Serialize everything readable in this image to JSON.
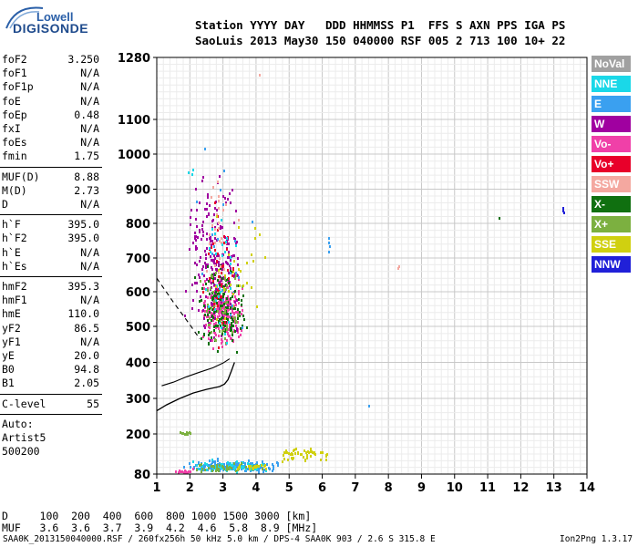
{
  "logo": {
    "top": "Lowell",
    "bottom": "DIGISONDE"
  },
  "header": {
    "line1": "Station YYYY DAY   DDD HHMMSS P1  FFS S AXN PPS IGA PS",
    "line2": "SaoLuis 2013 May30 150 040000 RSF 005 2 713 100 10+ 22"
  },
  "params_group1": [
    {
      "label": "foF2",
      "value": "3.250"
    },
    {
      "label": "foF1",
      "value": "N/A"
    },
    {
      "label": "foF1p",
      "value": "N/A"
    },
    {
      "label": "foE",
      "value": "N/A"
    },
    {
      "label": "foEp",
      "value": "0.48"
    },
    {
      "label": "fxI",
      "value": "N/A"
    },
    {
      "label": "foEs",
      "value": "N/A"
    },
    {
      "label": "fmin",
      "value": "1.75"
    }
  ],
  "params_group2": [
    {
      "label": "MUF(D)",
      "value": "8.88"
    },
    {
      "label": "M(D)",
      "value": "2.73"
    },
    {
      "label": "D",
      "value": "N/A"
    }
  ],
  "params_group3": [
    {
      "label": "h`F",
      "value": "395.0"
    },
    {
      "label": "h`F2",
      "value": "395.0"
    },
    {
      "label": "h`E",
      "value": "N/A"
    },
    {
      "label": "h`Es",
      "value": "N/A"
    }
  ],
  "params_group4": [
    {
      "label": "hmF2",
      "value": "395.3"
    },
    {
      "label": "hmF1",
      "value": "N/A"
    },
    {
      "label": "hmE",
      "value": "110.0"
    },
    {
      "label": "yF2",
      "value": "86.5"
    },
    {
      "label": "yF1",
      "value": "N/A"
    },
    {
      "label": "yE",
      "value": "20.0"
    },
    {
      "label": "B0",
      "value": "94.8"
    },
    {
      "label": "B1",
      "value": "2.05"
    }
  ],
  "clevel": {
    "label": "C-level",
    "value": "55"
  },
  "scaling": {
    "line1": "Auto:",
    "line2": "Artist5",
    "line3": "500200"
  },
  "legend": [
    {
      "name": "NoVal",
      "color": "#a0a0a0"
    },
    {
      "name": "NNE",
      "color": "#1ad8e8"
    },
    {
      "name": "E",
      "color": "#3aa0f0"
    },
    {
      "name": "W",
      "color": "#a000a0"
    },
    {
      "name": "Vo-",
      "color": "#f040a8"
    },
    {
      "name": "Vo+",
      "color": "#e8002a"
    },
    {
      "name": "SSW",
      "color": "#f4a8a0"
    },
    {
      "name": "X-",
      "color": "#107010"
    },
    {
      "name": "X+",
      "color": "#7cb040"
    },
    {
      "name": "SSE",
      "color": "#d0d010"
    },
    {
      "name": "NNW",
      "color": "#2020d8"
    }
  ],
  "muf_table": {
    "d_row": "D     100  200  400  600  800 1000 1500 3000 [km]",
    "muf_row": "MUF   3.6  3.6  3.7  3.9  4.2  4.6  5.8  8.9 [MHz]"
  },
  "footer": {
    "file_info": "SAA0K_2013150040000.RSF / 260fx256h 50 kHz 5.0 km / DPS-4 SAA0K 903 / 2.6 S 315.8 E",
    "version": "Ion2Png 1.3.17"
  },
  "chart_data": {
    "type": "scatter",
    "title": "",
    "xlabel": "",
    "ylabel": "",
    "xlim": [
      1,
      14
    ],
    "ylim": [
      80,
      1280
    ],
    "x_ticks": [
      "1",
      "2",
      "3",
      "4",
      "5",
      "6",
      "7",
      "8",
      "9",
      "10",
      "11",
      "12",
      "13",
      "14"
    ],
    "y_ticks": [
      "80",
      "200",
      "300",
      "400",
      "500",
      "600",
      "700",
      "800",
      "900",
      "1000",
      "1100",
      "1280"
    ],
    "y_tick_values": [
      80,
      200,
      300,
      400,
      500,
      600,
      700,
      800,
      900,
      1000,
      1100,
      1280
    ],
    "grid": true,
    "profile_curve": [
      [
        1.0,
        265
      ],
      [
        1.3,
        282
      ],
      [
        1.7,
        300
      ],
      [
        2.1,
        315
      ],
      [
        2.5,
        325
      ],
      [
        2.9,
        333
      ],
      [
        3.05,
        340
      ],
      [
        3.15,
        352
      ],
      [
        3.25,
        375
      ],
      [
        3.35,
        400
      ]
    ],
    "trace_curve": [
      [
        1.15,
        335
      ],
      [
        1.5,
        345
      ],
      [
        1.9,
        360
      ],
      [
        2.3,
        373
      ],
      [
        2.7,
        385
      ],
      [
        3.0,
        398
      ],
      [
        3.2,
        410
      ]
    ],
    "dashed_curve": [
      [
        1.0,
        640
      ],
      [
        1.5,
        570
      ],
      [
        2.0,
        505
      ],
      [
        2.3,
        465
      ]
    ],
    "clusters": [
      {
        "series": "Vo-",
        "x_range": [
          2.3,
          3.6
        ],
        "y_range": [
          420,
          680
        ],
        "count": 260
      },
      {
        "series": "W",
        "x_range": [
          1.8,
          3.6
        ],
        "y_range": [
          380,
          1000
        ],
        "count": 230
      },
      {
        "series": "X-",
        "x_range": [
          2.0,
          3.8
        ],
        "y_range": [
          390,
          720
        ],
        "count": 150
      },
      {
        "series": "X+",
        "x_range": [
          2.2,
          3.7
        ],
        "y_range": [
          400,
          700
        ],
        "count": 60
      },
      {
        "series": "Vo+",
        "x_range": [
          2.3,
          3.4
        ],
        "y_range": [
          420,
          900
        ],
        "count": 40
      },
      {
        "series": "SSW",
        "x_range": [
          2.3,
          3.5
        ],
        "y_range": [
          500,
          1060
        ],
        "count": 30
      },
      {
        "series": "NNE",
        "x_range": [
          2.4,
          3.4
        ],
        "y_range": [
          420,
          900
        ],
        "count": 30
      },
      {
        "series": "SSE",
        "x_range": [
          2.5,
          4.4
        ],
        "y_range": [
          440,
          900
        ],
        "count": 30
      },
      {
        "series": "E",
        "x_range": [
          1.8,
          4.0
        ],
        "y_range": [
          400,
          1050
        ],
        "count": 20
      },
      {
        "series": "E",
        "x_range": [
          1.7,
          4.8
        ],
        "y_range": [
          82,
          135
        ],
        "count": 170
      },
      {
        "series": "NNE",
        "x_range": [
          1.8,
          4.5
        ],
        "y_range": [
          82,
          130
        ],
        "count": 70
      },
      {
        "series": "X+",
        "x_range": [
          2.0,
          4.2
        ],
        "y_range": [
          82,
          125
        ],
        "count": 40
      },
      {
        "series": "SSE",
        "x_range": [
          4.5,
          6.3
        ],
        "y_range": [
          115,
          165
        ],
        "count": 50
      },
      {
        "series": "SSE",
        "x_range": [
          3.3,
          4.4
        ],
        "y_range": [
          95,
          120
        ],
        "count": 20
      },
      {
        "series": "Vo-",
        "x_range": [
          1.5,
          2.2
        ],
        "y_range": [
          82,
          100
        ],
        "count": 15
      },
      {
        "series": "X+",
        "x_range": [
          1.6,
          2.1
        ],
        "y_range": [
          200,
          210
        ],
        "count": 15
      },
      {
        "series": "NNE",
        "x_range": [
          1.9,
          2.1
        ],
        "y_range": [
          910,
          970
        ],
        "count": 3
      },
      {
        "series": "E",
        "x_range": [
          6.15,
          6.25
        ],
        "y_range": [
          680,
          790
        ],
        "count": 4
      },
      {
        "series": "E",
        "x_range": [
          7.35,
          7.4
        ],
        "y_range": [
          278,
          284
        ],
        "count": 1
      },
      {
        "series": "SSW",
        "x_range": [
          8.25,
          8.32
        ],
        "y_range": [
          650,
          700
        ],
        "count": 2
      },
      {
        "series": "X-",
        "x_range": [
          11.3,
          11.35
        ],
        "y_range": [
          815,
          820
        ],
        "count": 1
      },
      {
        "series": "NNW",
        "x_range": [
          13.2,
          13.28
        ],
        "y_range": [
          820,
          860
        ],
        "count": 3
      },
      {
        "series": "SSW",
        "x_range": [
          4.05,
          4.1
        ],
        "y_range": [
          1228,
          1236
        ],
        "count": 1
      }
    ]
  }
}
